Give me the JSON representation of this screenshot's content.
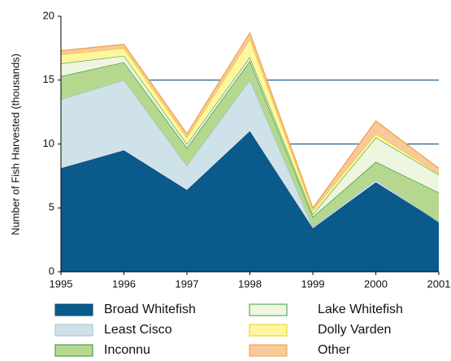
{
  "chart_data": {
    "type": "stacked_area",
    "y_label": "Number of Fish Harvested (thousands)",
    "x": [
      1995,
      1996,
      1997,
      1998,
      1999,
      2000,
      2001
    ],
    "xlim": [
      1995,
      2001
    ],
    "xticks": [
      1995,
      1996,
      1997,
      1998,
      1999,
      2000,
      2001
    ],
    "ylim": [
      0,
      20
    ],
    "yticks": [
      0,
      5,
      10,
      15,
      20
    ],
    "grid": true,
    "series": [
      {
        "name": "Broad Whitefish",
        "color": "#0a5a8c",
        "line_color": "#0a4a78",
        "values": [
          8.1,
          9.5,
          6.4,
          11.0,
          3.4,
          7.0,
          3.9
        ]
      },
      {
        "name": "Least Cisco",
        "color": "#cfe2ea",
        "line_color": "#9fbfcf",
        "values": [
          5.4,
          5.5,
          1.9,
          4.0,
          0.1,
          0.2,
          0.0
        ]
      },
      {
        "name": "Inconnu",
        "color": "#b5d88e",
        "line_color": "#2e8b3e",
        "values": [
          1.8,
          1.4,
          1.4,
          1.5,
          0.8,
          1.4,
          2.3
        ]
      },
      {
        "name": "Lake Whitefish",
        "color": "#eef6df",
        "line_color": "#3a9a4a",
        "values": [
          1.0,
          0.5,
          0.3,
          0.3,
          0.2,
          1.9,
          1.4
        ]
      },
      {
        "name": "Dolly Varden",
        "color": "#fff7a0",
        "line_color": "#e8cc10",
        "values": [
          0.7,
          0.6,
          0.5,
          1.4,
          0.3,
          0.3,
          0.1
        ]
      },
      {
        "name": "Other",
        "color": "#f8c99a",
        "line_color": "#f0a040",
        "values": [
          0.3,
          0.3,
          0.3,
          0.5,
          0.2,
          1.0,
          0.4
        ]
      }
    ]
  }
}
